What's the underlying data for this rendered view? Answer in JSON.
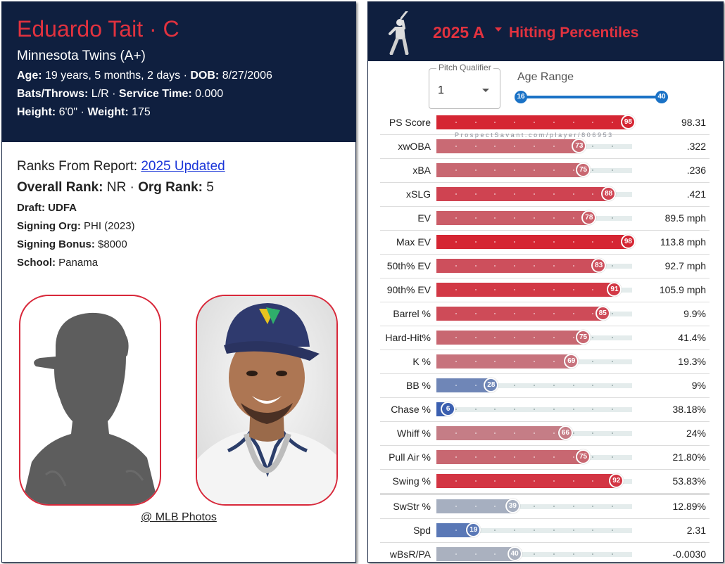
{
  "player": {
    "name": "Eduardo Tait · C",
    "team": "Minnesota Twins (A+)",
    "age_label": "Age:",
    "age": "19 years, 5 months, 2 days",
    "dob_label": "DOB:",
    "dob": "8/27/2006",
    "bats_throws_label": "Bats/Throws:",
    "bats_throws": "L/R",
    "service_time_label": "Service Time:",
    "service_time": "0.000",
    "height_label": "Height:",
    "height": "6'0\"",
    "weight_label": "Weight:",
    "weight": "175",
    "ranks_label": "Ranks From Report:",
    "ranks_link": "2025 Updated",
    "overall_rank_label": "Overall Rank:",
    "overall_rank": "NR",
    "org_rank_label": "Org Rank:",
    "org_rank": "5",
    "draft_label": "Draft:",
    "draft": "UDFA",
    "signing_org_label": "Signing Org:",
    "signing_org": "PHI (2023)",
    "signing_bonus_label": "Signing Bonus:",
    "signing_bonus": "$8000",
    "school_label": "School:",
    "school": "Panama",
    "photo_credit": "@ MLB Photos"
  },
  "percentiles": {
    "year": "2025 A",
    "title": "Hitting Percentiles",
    "pitch_qualifier_label": "Pitch Qualifier",
    "pitch_qualifier_value": "1",
    "age_range_label": "Age Range",
    "age_min": "16",
    "age_max": "40",
    "watermark": "ProspectSavant.com/player/806953",
    "metrics": [
      {
        "label": "PS Score",
        "pct": 98,
        "value": "98.31",
        "color": "#d52633"
      },
      {
        "label": "xwOBA",
        "pct": 73,
        "value": ".322",
        "color": "#c96a74"
      },
      {
        "label": "xBA",
        "pct": 75,
        "value": ".236",
        "color": "#c86771"
      },
      {
        "label": "xSLG",
        "pct": 88,
        "value": ".421",
        "color": "#cf4351"
      },
      {
        "label": "EV",
        "pct": 78,
        "value": "89.5 mph",
        "color": "#cb5d68"
      },
      {
        "label": "Max EV",
        "pct": 98,
        "value": "113.8 mph",
        "color": "#d52633"
      },
      {
        "label": "50th% EV",
        "pct": 83,
        "value": "92.7 mph",
        "color": "#cd4f5c"
      },
      {
        "label": "90th% EV",
        "pct": 91,
        "value": "105.9 mph",
        "color": "#d23845"
      },
      {
        "label": "Barrel %",
        "pct": 85,
        "value": "9.9%",
        "color": "#ce4b58"
      },
      {
        "label": "Hard-Hit%",
        "pct": 75,
        "value": "41.4%",
        "color": "#c86771"
      },
      {
        "label": "K %",
        "pct": 69,
        "value": "19.3%",
        "color": "#c7737d"
      },
      {
        "label": "BB %",
        "pct": 28,
        "value": "9%",
        "color": "#6f86b7"
      },
      {
        "label": "Chase %",
        "pct": 6,
        "value": "38.18%",
        "color": "#3b5fb0"
      },
      {
        "label": "Whiff %",
        "pct": 66,
        "value": "24%",
        "color": "#c57d86"
      },
      {
        "label": "Pull Air %",
        "pct": 75,
        "value": "21.80%",
        "color": "#c86771"
      },
      {
        "label": "Swing %",
        "pct": 92,
        "value": "53.83%",
        "color": "#d33543"
      },
      {
        "label": "SwStr %",
        "pct": 39,
        "value": "12.89%",
        "color": "#a6afc0"
      },
      {
        "label": "Spd",
        "pct": 19,
        "value": "2.31",
        "color": "#5a78b6"
      },
      {
        "label": "wBsR/PA",
        "pct": 40,
        "value": "-0.0030",
        "color": "#aab1bf"
      }
    ]
  }
}
